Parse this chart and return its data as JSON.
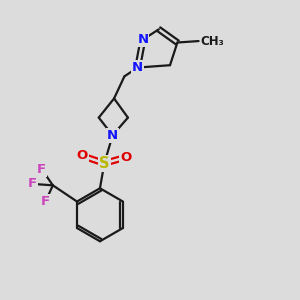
{
  "background_color": "#dcdcdc",
  "bond_color": "#1a1a1a",
  "nitrogen_color": "#1414ff",
  "oxygen_color": "#e00000",
  "sulfur_color": "#b8b800",
  "fluorine_color": "#cc44bb",
  "figsize": [
    3.0,
    3.0
  ],
  "dpi": 100,
  "xlim": [
    0,
    10
  ],
  "ylim": [
    0,
    10
  ]
}
